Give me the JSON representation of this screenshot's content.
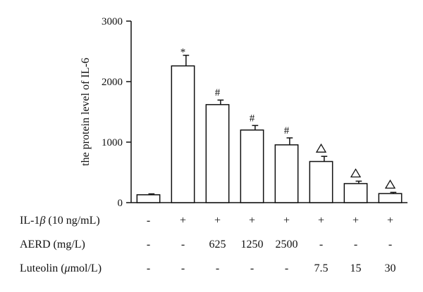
{
  "chart_data": {
    "type": "bar",
    "ylabel": "the protein level of IL-6",
    "ylim": [
      0,
      3000
    ],
    "yticks": [
      0,
      1000,
      2000,
      3000
    ],
    "grid": false,
    "values": [
      130,
      2260,
      1620,
      1200,
      955,
      680,
      315,
      150
    ],
    "errors": [
      15,
      175,
      75,
      75,
      115,
      85,
      40,
      20
    ],
    "annotations": [
      "",
      "*",
      "#",
      "#",
      "#",
      "△",
      "△",
      "△"
    ],
    "treatment_rows": [
      {
        "label_prefix": "IL-1",
        "label_greek": "β",
        "label_suffix": " (10 ng/mL)",
        "cells": [
          "-",
          "+",
          "+",
          "+",
          "+",
          "+",
          "+",
          "+"
        ]
      },
      {
        "label_prefix": "AERD (mg/L)",
        "label_greek": "",
        "label_suffix": "",
        "cells": [
          "-",
          "-",
          "625",
          "1250",
          "2500",
          "-",
          "-",
          "-"
        ]
      },
      {
        "label_prefix": "Luteolin (",
        "label_greek": "μ",
        "label_suffix": "mol/L)",
        "cells": [
          "-",
          "-",
          "-",
          "-",
          "-",
          "7.5",
          "15",
          "30"
        ]
      }
    ]
  }
}
